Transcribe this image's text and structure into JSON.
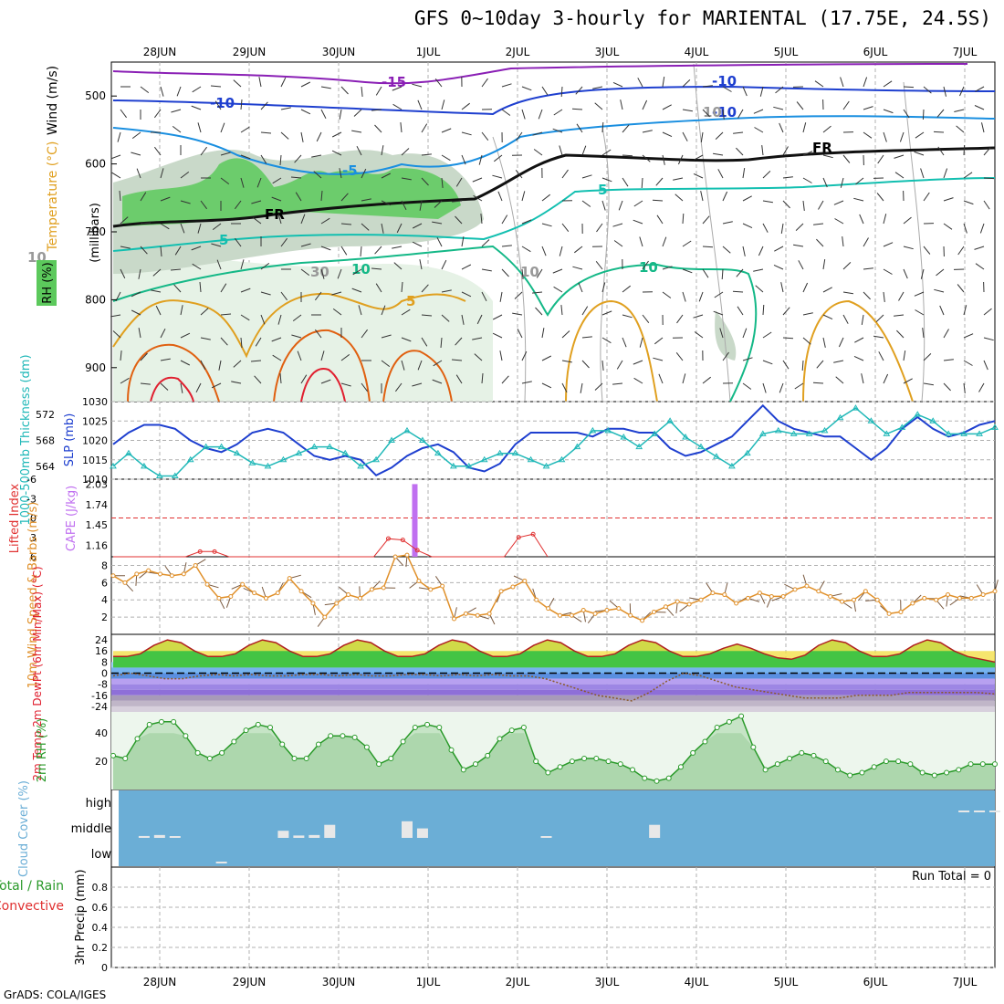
{
  "title": "GFS 0~10day 3-hourly for MARIENTAL (17.75E, 24.5S)",
  "credit": "GrADS: COLA/IGES",
  "colors": {
    "grid": "#b0b0b0",
    "rh_light": "#e6f2e6",
    "rh_mid": "#c9d9c9",
    "rh_dark": "#5cc95c",
    "temp_purple": "#8a1fb5",
    "temp_blue": "#1e3fcf",
    "temp_lightblue": "#1a8fe0",
    "temp_cyan": "#12bfb0",
    "temp_green": "#14b887",
    "temp_orange": "#e0a020",
    "temp_darkorange": "#e06010",
    "temp_red": "#e02030",
    "freezing": "#000000",
    "slp": "#1e3fcf",
    "thickness": "#20b8b8",
    "lifted": "#e03030",
    "cape": "#c070f0",
    "wind10": "#e0902a",
    "barb": "#7a5a40",
    "rh2m": "#2a9a2a",
    "cloud_bg": "#6baed6",
    "cloud_bar": "#e8e8e8"
  },
  "chart_data": [
    {
      "panel": "upper-air",
      "type": "heatmap",
      "xlabel": "",
      "ylabel": "(millibars)",
      "y_ticks": [
        "500",
        "600",
        "700",
        "800",
        "900"
      ],
      "ylim": [
        450,
        950
      ],
      "legend_labels": {
        "wind": "Wind (m/s)",
        "temp": "Temperature (°C)",
        "rh": "RH (%)"
      },
      "contour_labels": [
        "-15",
        "-10",
        "-10",
        "-5",
        "-10",
        "FR",
        "FR",
        "5",
        "5",
        "10",
        "10",
        "5",
        "10",
        "30",
        "10",
        "10"
      ],
      "x_dates": [
        "28JUN",
        "29JUN",
        "30JUN",
        "1JUL",
        "2JUL",
        "3JUL",
        "4JUL",
        "5JUL",
        "6JUL",
        "7JUL"
      ]
    },
    {
      "panel": "slp-thickness",
      "type": "line",
      "ylabel_left": "1000-500mb Thickness (dm)",
      "ylabel_right": "SLP (mb)",
      "left_ticks": [
        "564",
        "568",
        "572"
      ],
      "right_ticks": [
        "1010",
        "1015",
        "1020",
        "1025",
        "1030"
      ],
      "ylim_slp": [
        1010,
        1030
      ],
      "ylim_thk": [
        562,
        574
      ],
      "series": [
        {
          "name": "SLP (mb)",
          "values": [
            1019,
            1022,
            1024,
            1024,
            1023,
            1020,
            1018,
            1017,
            1019,
            1022,
            1023,
            1022,
            1019,
            1016,
            1015,
            1016,
            1015,
            1011,
            1013,
            1016,
            1018,
            1019,
            1017,
            1013,
            1012,
            1014,
            1019,
            1022,
            1022,
            1022,
            1022,
            1021,
            1023,
            1023,
            1022,
            1022,
            1018,
            1016,
            1017,
            1019,
            1021,
            1025,
            1029,
            1025,
            1023,
            1022,
            1021,
            1021,
            1018,
            1015,
            1018,
            1023,
            1026,
            1023,
            1021,
            1022,
            1024,
            1025
          ]
        },
        {
          "name": "1000-500mb Thickness (dm)",
          "values": [
            564,
            566,
            564,
            562.5,
            562.5,
            565,
            567,
            567,
            566,
            564.5,
            564,
            565,
            566,
            567,
            567,
            566,
            564,
            565,
            568,
            569.5,
            568,
            566,
            564,
            564,
            565,
            566,
            566,
            565,
            564,
            565,
            567,
            569.5,
            569.5,
            568.5,
            567,
            569,
            571,
            568.5,
            567,
            565.5,
            564,
            566,
            569,
            569.5,
            569,
            569,
            569.5,
            571.5,
            573,
            571,
            569,
            570,
            572,
            571,
            569,
            569,
            569,
            570
          ]
        }
      ]
    },
    {
      "panel": "lifted-cape",
      "type": "bar",
      "ylabel_left": "Lifted Index",
      "ylabel_right": "CAPE (J/kg)",
      "left_ticks": [
        "-6",
        "-3",
        "0",
        "3",
        "6"
      ],
      "right_ticks": [
        "1.16",
        "1.45",
        "1.74",
        "2.03"
      ],
      "cape_bar_x": 19.5,
      "cape_value": 2.03,
      "lifted_series": [
        6,
        6,
        6,
        6,
        6,
        6,
        5.2,
        5.2,
        6,
        6,
        6,
        6,
        6,
        6,
        6,
        6,
        6,
        6,
        6,
        3.2,
        3.4,
        5,
        6,
        6,
        6,
        6,
        6,
        6,
        3,
        2.5,
        6
      ]
    },
    {
      "panel": "wind10m",
      "type": "line",
      "ylabel": "10m Wind Speed & Barbs (m/s)",
      "y_ticks": [
        "2",
        "4",
        "6",
        "8"
      ],
      "ylim": [
        0,
        9
      ],
      "series": [
        {
          "name": "10m Wind Speed",
          "values": [
            6.8,
            6,
            7,
            7.4,
            7,
            6.8,
            7,
            8,
            5.8,
            4.2,
            4.4,
            5.8,
            4.8,
            4.2,
            4.8,
            6.5,
            5,
            3.6,
            2,
            3.6,
            4.6,
            4.2,
            5.2,
            5.4,
            9,
            9.2,
            6.2,
            5.2,
            5.6,
            1.8,
            2.4,
            2.2,
            2.4,
            5,
            5.5,
            6.2,
            4,
            3,
            2.2,
            2.2,
            2.8,
            2.4,
            2.8,
            3,
            2.2,
            1.6,
            2.6,
            3.2,
            3.8,
            3.5,
            4,
            4.8,
            4.6,
            3.6,
            4.2,
            4.8,
            4.4,
            4.4,
            5.2,
            5.6,
            5,
            4.4,
            3.8,
            4,
            5,
            4,
            2.4,
            2.6,
            3.6,
            4.2,
            4,
            4.6,
            4.2,
            4.2,
            4.6,
            5
          ]
        }
      ]
    },
    {
      "panel": "temperature",
      "type": "area",
      "ylabel": "2m Temp 2m DewPt (6hr Min/Max) (°C)",
      "y_ticks": [
        "24",
        "16",
        "8",
        "0",
        "-8",
        "-16",
        "-24"
      ],
      "ylim": [
        -28,
        28
      ],
      "series": [
        {
          "name": "2m Temp",
          "values": [
            12,
            12,
            14,
            20,
            24,
            22,
            16,
            12,
            12,
            14,
            20,
            24,
            22,
            16,
            12,
            12,
            14,
            20,
            24,
            22,
            16,
            12,
            12,
            14,
            20,
            24,
            22,
            16,
            12,
            12,
            14,
            20,
            24,
            22,
            16,
            12,
            12,
            14,
            20,
            24,
            22,
            16,
            12,
            12,
            14,
            18,
            21,
            18,
            14,
            11,
            10,
            13,
            20,
            24,
            22,
            16,
            12,
            12,
            14,
            20,
            24,
            22,
            16,
            12,
            10,
            8
          ]
        },
        {
          "name": "2m DewPt",
          "values": [
            -2,
            0,
            -2,
            -4,
            -4,
            -2,
            -1,
            -2,
            -1,
            -2,
            -2,
            -1,
            -1,
            -2,
            -1,
            -2,
            -2,
            -1,
            -1,
            -2,
            -1,
            -2,
            -1,
            -2,
            -2,
            -4,
            -8,
            -12,
            -16,
            -18,
            -20,
            -14,
            -6,
            0,
            -2,
            -6,
            -10,
            -12,
            -14,
            -16,
            -18,
            -18,
            -18,
            -16,
            -16,
            -16,
            -14,
            -14,
            -14,
            -14,
            -14,
            -15
          ]
        }
      ]
    },
    {
      "panel": "rh2m",
      "type": "area",
      "ylabel": "2m RH (%)",
      "y_ticks": [
        "20",
        "40"
      ],
      "ylim": [
        0,
        55
      ],
      "series": [
        {
          "name": "2m RH",
          "values": [
            24,
            22,
            36,
            46,
            48,
            48,
            38,
            26,
            22,
            26,
            34,
            42,
            46,
            44,
            32,
            22,
            22,
            32,
            38,
            38,
            37,
            30,
            18,
            22,
            34,
            44,
            46,
            44,
            28,
            14,
            18,
            24,
            36,
            42,
            44,
            20,
            12,
            16,
            20,
            22,
            22,
            20,
            18,
            14,
            8,
            6,
            8,
            16,
            26,
            34,
            44,
            48,
            52,
            30,
            14,
            18,
            22,
            26,
            24,
            20,
            14,
            10,
            12,
            16,
            20,
            20,
            18,
            12,
            10,
            12,
            14,
            18,
            18,
            18
          ]
        }
      ]
    },
    {
      "panel": "cloud",
      "type": "bar",
      "ylabel": "Cloud Cover (%)",
      "y_ticks": [
        "high",
        "middle",
        "low"
      ],
      "bars": [
        {
          "x": 2,
          "level": "middle",
          "value": 8
        },
        {
          "x": 3,
          "level": "middle",
          "value": 12
        },
        {
          "x": 4,
          "level": "middle",
          "value": 6
        },
        {
          "x": 7,
          "level": "low",
          "value": 3
        },
        {
          "x": 11,
          "level": "middle",
          "value": 30
        },
        {
          "x": 12,
          "level": "middle",
          "value": 10
        },
        {
          "x": 13,
          "level": "middle",
          "value": 12
        },
        {
          "x": 14,
          "level": "middle",
          "value": 55
        },
        {
          "x": 19,
          "level": "middle",
          "value": 70
        },
        {
          "x": 20,
          "level": "middle",
          "value": 40
        },
        {
          "x": 28,
          "level": "middle",
          "value": 6
        },
        {
          "x": 35,
          "level": "middle",
          "value": 55
        },
        {
          "x": 55,
          "level": "high",
          "value": 6
        },
        {
          "x": 56,
          "level": "high",
          "value": 6
        },
        {
          "x": 57,
          "level": "high",
          "value": 6
        }
      ]
    },
    {
      "panel": "precip",
      "type": "bar",
      "ylabel": "3hr Precip (mm)",
      "legend_left": "Total / Rain",
      "legend_conv": "Convective",
      "run_total": "Run Total = 0",
      "y_ticks": [
        "0",
        "0.2",
        "0.4",
        "0.6",
        "0.8"
      ],
      "ylim": [
        0,
        1
      ],
      "values": []
    }
  ]
}
